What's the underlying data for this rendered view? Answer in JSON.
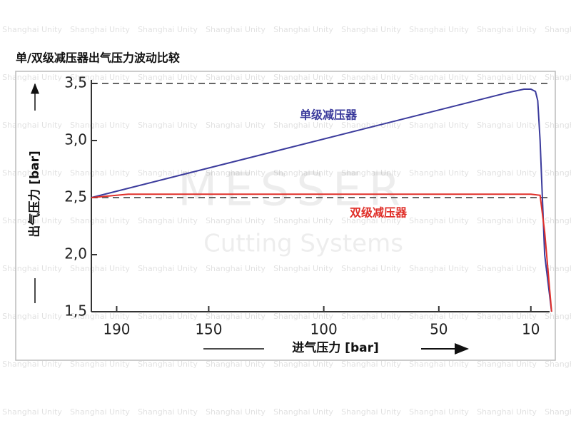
{
  "chart_data": {
    "type": "line",
    "title": "单/双级减压器出气压力波动比较",
    "x_label": "进气压力 [bar]",
    "y_label": "出气压力 [bar]",
    "watermark": "Shanghai Unity",
    "logo": {
      "name": "MESSER",
      "tagline": "Cutting Systems"
    },
    "xlim": [
      201,
      0
    ],
    "ylim": [
      1.5,
      3.5
    ],
    "xticks": [
      190,
      150,
      100,
      50,
      10
    ],
    "yticks": [
      {
        "value": 1.5,
        "label": "1,5"
      },
      {
        "value": 2.0,
        "label": "2,0"
      },
      {
        "value": 2.5,
        "label": "2,5"
      },
      {
        "value": 3.0,
        "label": "3,0"
      },
      {
        "value": 3.5,
        "label": "3,5"
      }
    ],
    "reference_lines": [
      3.5,
      2.5
    ],
    "series": [
      {
        "name": "单级减压器",
        "color": "#3b3b9c",
        "x": [
          201,
          20,
          13,
          10,
          8,
          7,
          6,
          4,
          1
        ],
        "values": [
          2.5,
          3.42,
          3.45,
          3.45,
          3.43,
          3.35,
          3.0,
          2.0,
          1.5
        ]
      },
      {
        "name": "双级减压器",
        "color": "#e0302a",
        "x": [
          201,
          185,
          10,
          6,
          4,
          1
        ],
        "values": [
          2.5,
          2.53,
          2.53,
          2.52,
          2.2,
          1.5
        ]
      }
    ]
  }
}
